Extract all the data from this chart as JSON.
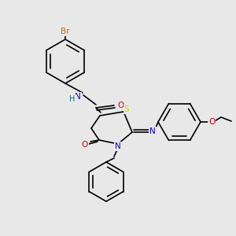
{
  "bg_color": "#e8e8e8",
  "bond_color": "#000000",
  "figsize": [
    3.0,
    3.0
  ],
  "dpi": 100,
  "atom_colors": {
    "Br": "#cc6600",
    "O": "#cc0000",
    "N": "#0000cc",
    "H": "#007070",
    "S": "#cccc00",
    "C": "#000000"
  },
  "font_size": 7.5,
  "bond_lw": 1.2
}
